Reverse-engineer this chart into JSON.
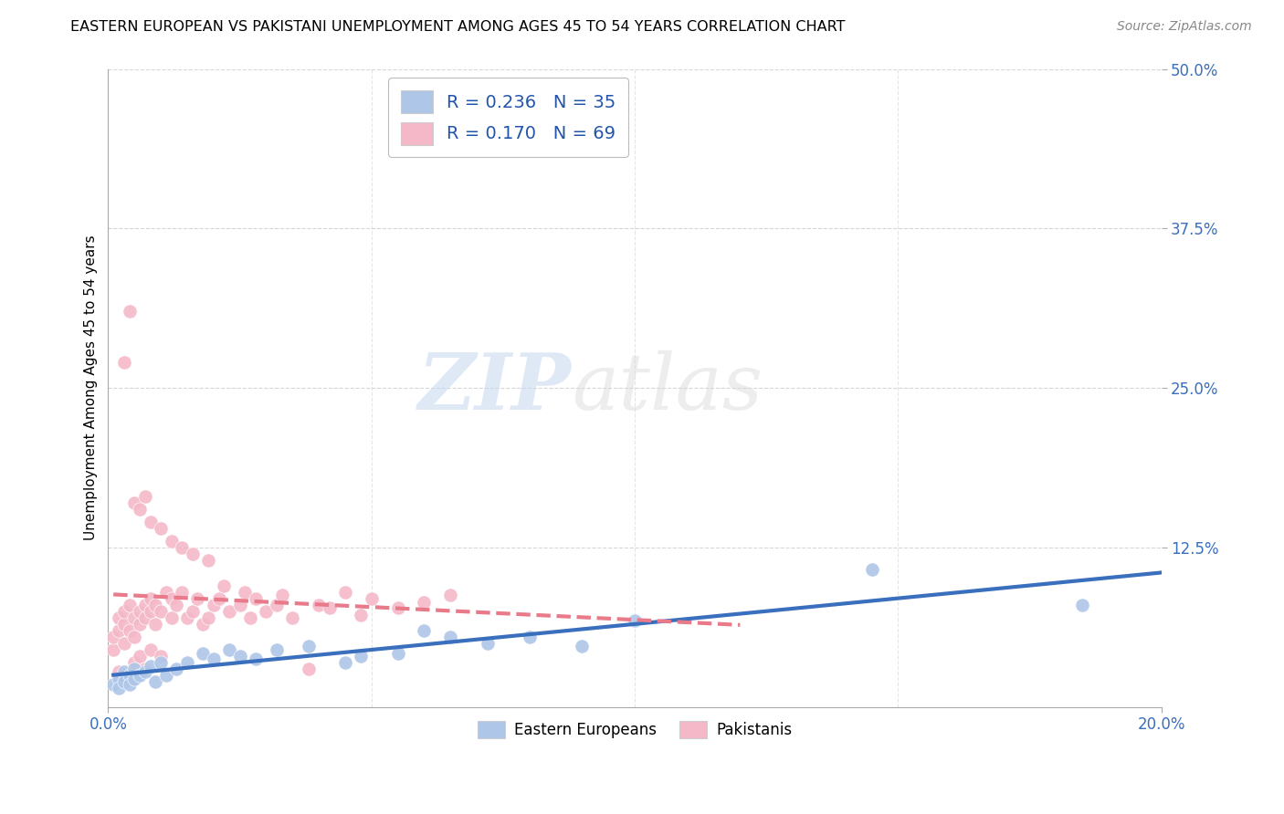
{
  "title": "EASTERN EUROPEAN VS PAKISTANI UNEMPLOYMENT AMONG AGES 45 TO 54 YEARS CORRELATION CHART",
  "source": "Source: ZipAtlas.com",
  "ylabel": "Unemployment Among Ages 45 to 54 years",
  "xlim": [
    0.0,
    0.2
  ],
  "ylim": [
    0.0,
    0.5
  ],
  "xticks": [
    0.0,
    0.2
  ],
  "yticks": [
    0.125,
    0.25,
    0.375,
    0.5
  ],
  "background_color": "#ffffff",
  "grid_color": "#cccccc",
  "blue_scatter_color": "#aec6e8",
  "pink_scatter_color": "#f4b8c8",
  "blue_line_color": "#3a6fbe",
  "pink_line_color": "#e87a8a",
  "R_blue": 0.236,
  "N_blue": 35,
  "R_pink": 0.17,
  "N_pink": 69,
  "legend_label_blue": "Eastern Europeans",
  "legend_label_pink": "Pakistanis",
  "watermark_zip": "ZIP",
  "watermark_atlas": "atlas",
  "eastern_european_x": [
    0.001,
    0.002,
    0.002,
    0.003,
    0.003,
    0.004,
    0.004,
    0.005,
    0.005,
    0.006,
    0.007,
    0.008,
    0.009,
    0.01,
    0.011,
    0.013,
    0.015,
    0.018,
    0.02,
    0.023,
    0.025,
    0.028,
    0.032,
    0.038,
    0.045,
    0.048,
    0.055,
    0.06,
    0.065,
    0.072,
    0.08,
    0.09,
    0.1,
    0.145,
    0.185
  ],
  "eastern_european_y": [
    0.018,
    0.022,
    0.015,
    0.028,
    0.02,
    0.025,
    0.018,
    0.03,
    0.022,
    0.025,
    0.028,
    0.032,
    0.02,
    0.035,
    0.025,
    0.03,
    0.035,
    0.042,
    0.038,
    0.045,
    0.04,
    0.038,
    0.045,
    0.048,
    0.035,
    0.04,
    0.042,
    0.06,
    0.055,
    0.05,
    0.055,
    0.048,
    0.068,
    0.108,
    0.08
  ],
  "pakistani_x": [
    0.001,
    0.001,
    0.002,
    0.002,
    0.002,
    0.003,
    0.003,
    0.003,
    0.003,
    0.004,
    0.004,
    0.005,
    0.005,
    0.005,
    0.006,
    0.006,
    0.006,
    0.007,
    0.007,
    0.007,
    0.008,
    0.008,
    0.008,
    0.009,
    0.009,
    0.01,
    0.01,
    0.011,
    0.012,
    0.012,
    0.013,
    0.014,
    0.015,
    0.016,
    0.017,
    0.018,
    0.019,
    0.02,
    0.021,
    0.022,
    0.023,
    0.025,
    0.026,
    0.027,
    0.028,
    0.03,
    0.032,
    0.033,
    0.035,
    0.038,
    0.04,
    0.042,
    0.045,
    0.048,
    0.05,
    0.055,
    0.06,
    0.065,
    0.003,
    0.004,
    0.005,
    0.006,
    0.007,
    0.008,
    0.01,
    0.012,
    0.014,
    0.016,
    0.019
  ],
  "pakistani_y": [
    0.045,
    0.055,
    0.06,
    0.07,
    0.028,
    0.05,
    0.065,
    0.075,
    0.025,
    0.08,
    0.06,
    0.055,
    0.07,
    0.035,
    0.065,
    0.075,
    0.04,
    0.07,
    0.08,
    0.03,
    0.075,
    0.085,
    0.045,
    0.08,
    0.065,
    0.075,
    0.04,
    0.09,
    0.085,
    0.07,
    0.08,
    0.09,
    0.07,
    0.075,
    0.085,
    0.065,
    0.07,
    0.08,
    0.085,
    0.095,
    0.075,
    0.08,
    0.09,
    0.07,
    0.085,
    0.075,
    0.08,
    0.088,
    0.07,
    0.03,
    0.08,
    0.078,
    0.09,
    0.072,
    0.085,
    0.078,
    0.082,
    0.088,
    0.27,
    0.31,
    0.16,
    0.155,
    0.165,
    0.145,
    0.14,
    0.13,
    0.125,
    0.12,
    0.115
  ]
}
